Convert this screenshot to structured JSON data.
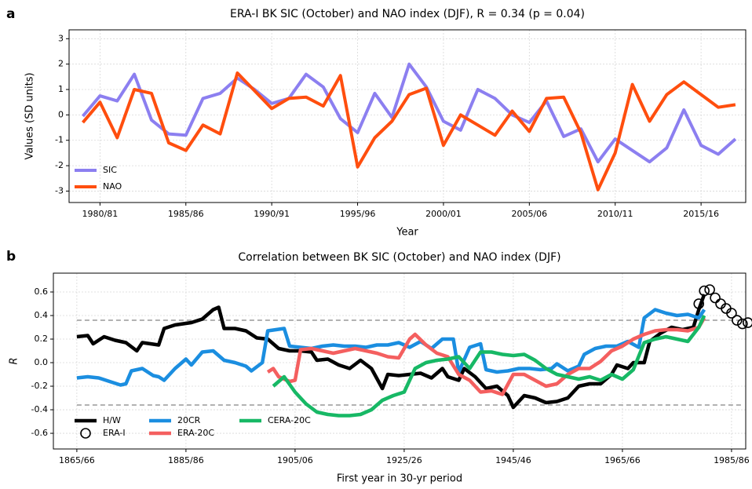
{
  "chart_data": [
    {
      "type": "line",
      "panel": "a",
      "title": "ERA-I BK SIC (October) and NAO index (DJF), R = 0.34 (p = 0.04)",
      "x_label": "Year",
      "y_label": "Values (SD units)",
      "x": [
        1979,
        1980,
        1981,
        1982,
        1983,
        1984,
        1985,
        1986,
        1987,
        1988,
        1989,
        1990,
        1991,
        1992,
        1993,
        1994,
        1995,
        1996,
        1997,
        1998,
        1999,
        2000,
        2001,
        2002,
        2003,
        2004,
        2005,
        2006,
        2007,
        2008,
        2009,
        2010,
        2011,
        2012,
        2013,
        2014,
        2015,
        2016,
        2017
      ],
      "series": [
        {
          "name": "SIC",
          "color": "#8c7ff0",
          "values": [
            -0.05,
            0.75,
            0.55,
            1.6,
            -0.2,
            -0.75,
            -0.8,
            0.65,
            0.85,
            1.45,
            1.0,
            0.45,
            0.65,
            1.6,
            1.1,
            -0.15,
            -0.7,
            0.85,
            -0.1,
            2.0,
            1.1,
            -0.25,
            -0.6,
            1.0,
            0.65,
            0.0,
            -0.3,
            0.55,
            -0.85,
            -0.55,
            -1.85,
            -0.95,
            -1.4,
            -1.85,
            -1.3,
            0.2,
            -1.2,
            -1.55,
            -0.95
          ]
        },
        {
          "name": "NAO",
          "color": "#ff4e0e",
          "values": [
            -0.3,
            0.5,
            -0.9,
            1.0,
            0.85,
            -1.1,
            -1.4,
            -0.4,
            -0.75,
            1.65,
            0.95,
            0.25,
            0.65,
            0.7,
            0.35,
            1.55,
            -2.05,
            -0.9,
            -0.25,
            0.8,
            1.05,
            -1.2,
            0.0,
            -0.4,
            -0.8,
            0.15,
            -0.65,
            0.65,
            0.7,
            -0.7,
            -2.95,
            -1.5,
            1.2,
            -0.25,
            0.8,
            1.3,
            0.8,
            0.3,
            0.4
          ]
        }
      ],
      "xlim": [
        1978.2,
        2017.6
      ],
      "xticks": [
        {
          "value": 1980,
          "label": "1980/81"
        },
        {
          "value": 1985,
          "label": "1985/86"
        },
        {
          "value": 1990,
          "label": "1990/91"
        },
        {
          "value": 1995,
          "label": "1995/96"
        },
        {
          "value": 2000,
          "label": "2000/01"
        },
        {
          "value": 2005,
          "label": "2005/06"
        },
        {
          "value": 2010,
          "label": "2010/11"
        },
        {
          "value": 2015,
          "label": "2015/16"
        }
      ],
      "ylim": [
        -3.45,
        3.35
      ],
      "yticks": [
        -3,
        -2,
        -1,
        0,
        1,
        2,
        3
      ],
      "grid": true,
      "legend": "lower left"
    },
    {
      "type": "line",
      "panel": "b",
      "title": "Correlation between BK SIC (October) and NAO index (DJF)",
      "x_label": "First year in 30-yr period",
      "y_label": "R",
      "series": [
        {
          "name": "H/W",
          "color": "#000000",
          "x": [
            1865,
            1867,
            1868,
            1870,
            1872,
            1874,
            1876,
            1877,
            1880,
            1881,
            1883,
            1886,
            1888,
            1890,
            1891,
            1892,
            1894,
            1896,
            1898,
            1900,
            1902,
            1904,
            1906,
            1908,
            1909,
            1911,
            1913,
            1915,
            1917,
            1919,
            1921,
            1922,
            1924,
            1926,
            1928,
            1930,
            1932,
            1933,
            1935,
            1936,
            1938,
            1940,
            1942,
            1944,
            1945,
            1947,
            1949,
            1951,
            1953,
            1955,
            1957,
            1959,
            1961,
            1963,
            1964,
            1966,
            1967,
            1969,
            1970,
            1972,
            1974,
            1976,
            1978,
            1979,
            1980
          ],
          "values": [
            0.22,
            0.23,
            0.16,
            0.22,
            0.19,
            0.17,
            0.1,
            0.17,
            0.15,
            0.29,
            0.32,
            0.34,
            0.37,
            0.45,
            0.47,
            0.29,
            0.29,
            0.27,
            0.21,
            0.2,
            0.12,
            0.1,
            0.1,
            0.09,
            0.02,
            0.03,
            -0.02,
            -0.05,
            0.02,
            -0.05,
            -0.22,
            -0.1,
            -0.11,
            -0.1,
            -0.09,
            -0.13,
            -0.05,
            -0.12,
            -0.15,
            -0.05,
            -0.12,
            -0.22,
            -0.2,
            -0.28,
            -0.38,
            -0.28,
            -0.3,
            -0.34,
            -0.33,
            -0.3,
            -0.2,
            -0.18,
            -0.18,
            -0.1,
            -0.02,
            -0.05,
            0.0,
            0.0,
            0.18,
            0.25,
            0.3,
            0.28,
            0.3,
            0.45,
            0.58
          ]
        },
        {
          "name": "ERA-I",
          "color": "#000000",
          "marker": "circle",
          "x": [
            1979,
            1980,
            1981,
            1982,
            1983,
            1984,
            1985,
            1986,
            1987,
            1988
          ],
          "values": [
            0.5,
            0.61,
            0.62,
            0.55,
            0.5,
            0.46,
            0.42,
            0.36,
            0.33,
            0.34
          ]
        },
        {
          "name": "20CR",
          "color": "#1b8ee0",
          "x": [
            1865,
            1867,
            1869,
            1871,
            1873,
            1874,
            1875,
            1877,
            1879,
            1880,
            1881,
            1883,
            1885,
            1886,
            1888,
            1890,
            1892,
            1894,
            1896,
            1897,
            1899,
            1900,
            1903,
            1904,
            1906,
            1908,
            1910,
            1912,
            1914,
            1916,
            1918,
            1920,
            1922,
            1924,
            1926,
            1928,
            1930,
            1932,
            1934,
            1935,
            1937,
            1939,
            1940,
            1942,
            1944,
            1946,
            1948,
            1950,
            1952,
            1953,
            1955,
            1957,
            1958,
            1960,
            1962,
            1964,
            1966,
            1968,
            1969,
            1971,
            1973,
            1975,
            1977,
            1979,
            1980
          ],
          "values": [
            -0.13,
            -0.12,
            -0.13,
            -0.16,
            -0.19,
            -0.18,
            -0.07,
            -0.05,
            -0.11,
            -0.12,
            -0.15,
            -0.05,
            0.03,
            -0.02,
            0.09,
            0.1,
            0.02,
            0.0,
            -0.03,
            -0.07,
            0.0,
            0.27,
            0.29,
            0.14,
            0.13,
            0.12,
            0.14,
            0.15,
            0.14,
            0.14,
            0.13,
            0.15,
            0.15,
            0.17,
            0.13,
            0.18,
            0.12,
            0.2,
            0.2,
            -0.08,
            0.13,
            0.16,
            -0.06,
            -0.08,
            -0.07,
            -0.05,
            -0.05,
            -0.06,
            -0.05,
            -0.01,
            -0.07,
            -0.03,
            0.07,
            0.12,
            0.14,
            0.14,
            0.18,
            0.13,
            0.38,
            0.45,
            0.42,
            0.4,
            0.41,
            0.38,
            0.45
          ]
        },
        {
          "name": "ERA-20C",
          "color": "#f45f5f",
          "x": [
            1900,
            1901,
            1902,
            1903,
            1904,
            1905,
            1906,
            1908,
            1910,
            1912,
            1914,
            1916,
            1918,
            1920,
            1922,
            1924,
            1926,
            1927,
            1929,
            1931,
            1933,
            1935,
            1937,
            1939,
            1941,
            1943,
            1945,
            1947,
            1949,
            1951,
            1953,
            1955,
            1957,
            1959,
            1961,
            1963,
            1965,
            1967,
            1969,
            1971,
            1973,
            1975,
            1977,
            1979,
            1980
          ],
          "values": [
            -0.08,
            -0.05,
            -0.12,
            -0.14,
            -0.16,
            -0.15,
            0.11,
            0.12,
            0.1,
            0.08,
            0.1,
            0.12,
            0.1,
            0.08,
            0.05,
            0.04,
            0.2,
            0.24,
            0.15,
            0.08,
            0.05,
            -0.1,
            -0.15,
            -0.25,
            -0.24,
            -0.27,
            -0.1,
            -0.1,
            -0.15,
            -0.2,
            -0.18,
            -0.1,
            -0.05,
            -0.05,
            0.01,
            0.1,
            0.14,
            0.2,
            0.24,
            0.27,
            0.28,
            0.28,
            0.27,
            0.3,
            0.38
          ]
        },
        {
          "name": "CERA-20C",
          "color": "#17b865",
          "x": [
            1901,
            1903,
            1905,
            1907,
            1909,
            1911,
            1913,
            1915,
            1917,
            1919,
            1921,
            1923,
            1925,
            1927,
            1929,
            1931,
            1933,
            1935,
            1937,
            1939,
            1941,
            1943,
            1945,
            1947,
            1949,
            1951,
            1953,
            1955,
            1957,
            1959,
            1961,
            1963,
            1965,
            1967,
            1969,
            1971,
            1973,
            1975,
            1977,
            1979,
            1980
          ],
          "values": [
            -0.2,
            -0.12,
            -0.25,
            -0.35,
            -0.42,
            -0.44,
            -0.45,
            -0.45,
            -0.44,
            -0.4,
            -0.32,
            -0.28,
            -0.25,
            -0.05,
            0.0,
            0.02,
            0.03,
            0.05,
            -0.05,
            0.09,
            0.09,
            0.07,
            0.06,
            0.07,
            0.02,
            -0.05,
            -0.1,
            -0.12,
            -0.14,
            -0.12,
            -0.15,
            -0.1,
            -0.14,
            -0.06,
            0.17,
            0.2,
            0.22,
            0.2,
            0.18,
            0.3,
            0.4
          ]
        }
      ],
      "reference_lines": [
        0.36,
        -0.36
      ],
      "xlim": [
        1860.7,
        1987.6
      ],
      "xticks": [
        {
          "value": 1865,
          "label": "1865/66"
        },
        {
          "value": 1885,
          "label": "1885/86"
        },
        {
          "value": 1905,
          "label": "1905/06"
        },
        {
          "value": 1925,
          "label": "1925/26"
        },
        {
          "value": 1945,
          "label": "1945/46"
        },
        {
          "value": 1965,
          "label": "1965/66"
        },
        {
          "value": 1985,
          "label": "1985/86"
        }
      ],
      "ylim": [
        -0.733,
        0.76
      ],
      "yticks": [
        -0.6,
        -0.4,
        -0.2,
        {
          "value": 0,
          "label": "0.0"
        },
        0.2,
        0.4,
        0.6
      ],
      "grid": true,
      "legend": "lower left"
    }
  ]
}
